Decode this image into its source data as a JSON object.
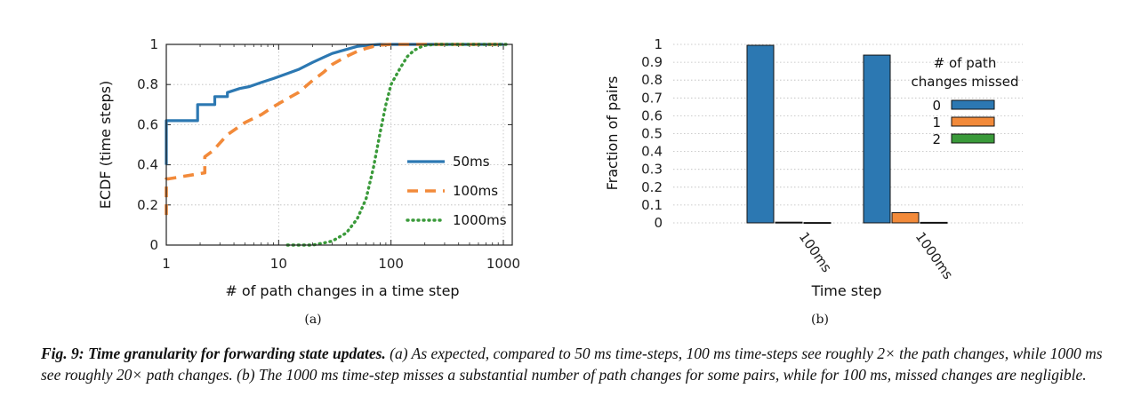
{
  "chart_data": [
    {
      "type": "line",
      "subfigure_label": "(a)",
      "xlabel": "# of path changes in a time step",
      "ylabel": "ECDF (time steps)",
      "xscale": "log",
      "xlim": [
        1,
        1200
      ],
      "ylim": [
        0,
        1
      ],
      "xticks": [
        "1",
        "10",
        "100",
        "1000"
      ],
      "yticks": [
        "0",
        "0.2",
        "0.4",
        "0.6",
        "0.8",
        "1"
      ],
      "grid": true,
      "legend_position": "center-right",
      "series": [
        {
          "name": "50ms",
          "color": "#2c78b2",
          "style": "solid",
          "x": [
            1,
            1,
            1.9,
            1.9,
            2.7,
            2.7,
            3.5,
            3.5,
            4.5,
            5.5,
            7,
            9,
            12,
            15,
            20,
            25,
            30,
            40,
            50,
            60,
            80,
            100,
            300,
            1000
          ],
          "y": [
            0.4,
            0.62,
            0.62,
            0.7,
            0.7,
            0.74,
            0.74,
            0.76,
            0.78,
            0.79,
            0.81,
            0.83,
            0.855,
            0.875,
            0.91,
            0.935,
            0.955,
            0.975,
            0.99,
            0.995,
            1.0,
            1.0,
            1.0,
            1.0
          ]
        },
        {
          "name": "100ms",
          "color": "#f28a3a",
          "style": "dashed",
          "x": [
            1,
            1,
            1.05,
            2.2,
            2.2,
            2.6,
            3.5,
            5,
            7,
            9,
            12,
            15,
            20,
            25,
            30,
            40,
            50,
            60,
            70,
            80,
            100,
            300,
            1000
          ],
          "y": [
            0.15,
            0.33,
            0.33,
            0.36,
            0.44,
            0.47,
            0.55,
            0.61,
            0.65,
            0.69,
            0.73,
            0.76,
            0.82,
            0.86,
            0.9,
            0.94,
            0.965,
            0.98,
            0.99,
            0.997,
            1.0,
            1.0,
            1.0
          ]
        },
        {
          "name": "1000ms",
          "color": "#3a9a3a",
          "style": "dotted",
          "x": [
            12,
            20,
            25,
            30,
            40,
            50,
            60,
            70,
            80,
            90,
            100,
            120,
            140,
            160,
            180,
            200,
            250,
            400,
            1100
          ],
          "y": [
            0.0,
            0.0,
            0.01,
            0.02,
            0.06,
            0.13,
            0.23,
            0.39,
            0.56,
            0.7,
            0.8,
            0.88,
            0.94,
            0.97,
            0.985,
            0.995,
            1.0,
            1.0,
            1.0
          ]
        }
      ]
    },
    {
      "type": "bar",
      "subfigure_label": "(b)",
      "xlabel": "Time step",
      "ylabel": "Fraction of pairs",
      "categories": [
        "100ms",
        "1000ms"
      ],
      "ylim": [
        0,
        1
      ],
      "yticks": [
        "0",
        "0.1",
        "0.2",
        "0.3",
        "0.4",
        "0.5",
        "0.6",
        "0.7",
        "0.8",
        "0.9",
        "1"
      ],
      "grid": true,
      "legend_title": "# of path changes missed",
      "legend_title_lines": [
        "# of path",
        "changes missed"
      ],
      "legend_position": "right",
      "series": [
        {
          "name": "0",
          "color": "#2c78b2",
          "values": [
            0.995,
            0.94
          ]
        },
        {
          "name": "1",
          "color": "#f28a3a",
          "values": [
            0.004,
            0.057
          ]
        },
        {
          "name": "2",
          "color": "#3a9a3a",
          "values": [
            0.002,
            0.003
          ]
        }
      ]
    }
  ],
  "caption": {
    "lead": "Fig. 9: Time granularity for forwarding state updates.",
    "body": " (a) As expected, compared to 50 ms time-steps, 100 ms time-steps see roughly 2× the path changes, while 1000 ms see roughly 20× path changes. (b) The 1000 ms time-step misses a substantial number of path changes for some pairs, while for 100 ms, missed changes are negligible."
  }
}
